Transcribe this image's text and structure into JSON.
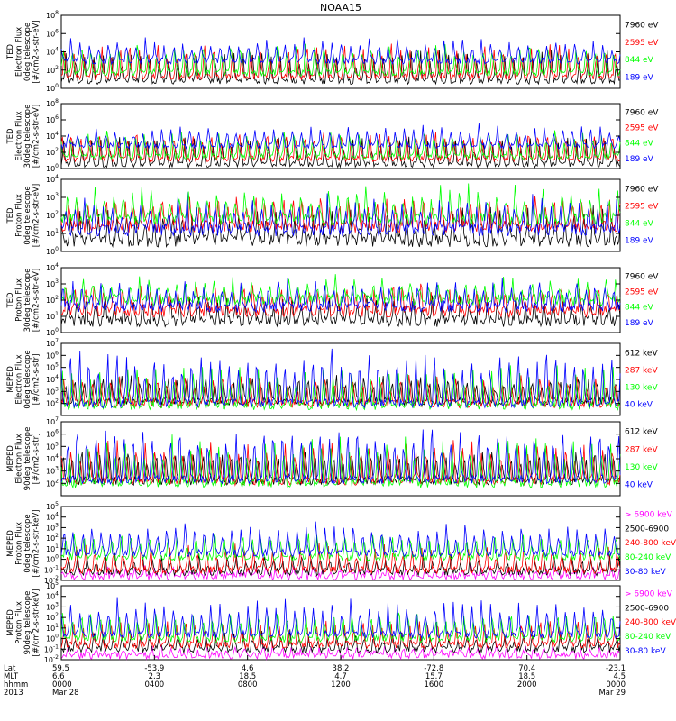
{
  "chart_data": {
    "type": "line",
    "title": "NOAA15",
    "log_scale_y": true,
    "legend_placement": "right",
    "x_time_start": "2013 Mar 28 0000",
    "x_time_end": "2013 Mar 29 0000",
    "panels": [
      {
        "ylabel": [
          "TED",
          "Electron Flux",
          "0deg telescope",
          "[#/cm2-s-str-eV]"
        ],
        "ylim_exp": [
          0,
          8
        ],
        "ytick_exps": [
          0,
          2,
          4,
          6,
          8
        ],
        "series": [
          {
            "name": "7960 eV",
            "color": "#000000",
            "base": 0.8,
            "amp": 3.0
          },
          {
            "name": "2595 eV",
            "color": "#ff0000",
            "base": 1.3,
            "amp": 3.3
          },
          {
            "name": "844 eV",
            "color": "#00ff00",
            "base": 1.7,
            "amp": 3.0
          },
          {
            "name": "189 eV",
            "color": "#0000ff",
            "base": 3.0,
            "amp": 2.2
          }
        ]
      },
      {
        "ylabel": [
          "TED",
          "Electron Flux",
          "30deg telescope",
          "[#/cm2-s-str-eV]"
        ],
        "ylim_exp": [
          0,
          8
        ],
        "ytick_exps": [
          0,
          2,
          4,
          6,
          8
        ],
        "series": [
          {
            "name": "7960 eV",
            "color": "#000000",
            "base": 0.5,
            "amp": 3.0
          },
          {
            "name": "2595 eV",
            "color": "#ff0000",
            "base": 1.2,
            "amp": 3.3
          },
          {
            "name": "844 eV",
            "color": "#00ff00",
            "base": 1.5,
            "amp": 3.0
          },
          {
            "name": "189 eV",
            "color": "#0000ff",
            "base": 2.8,
            "amp": 2.2
          }
        ]
      },
      {
        "ylabel": [
          "TED",
          "Proton Flux",
          "0deg telescope",
          "[#/cm2-s-str-eV]"
        ],
        "ylim_exp": [
          0,
          4
        ],
        "ytick_exps": [
          0,
          1,
          2,
          3,
          4
        ],
        "series": [
          {
            "name": "7960 eV",
            "color": "#000000",
            "base": 0.6,
            "amp": 1.6
          },
          {
            "name": "2595 eV",
            "color": "#ff0000",
            "base": 1.4,
            "amp": 1.6
          },
          {
            "name": "844 eV",
            "color": "#00ff00",
            "base": 1.8,
            "amp": 1.6
          },
          {
            "name": "189 eV",
            "color": "#0000ff",
            "base": 1.2,
            "amp": 1.6
          }
        ]
      },
      {
        "ylabel": [
          "TED",
          "Proton Flux",
          "30deg telescope",
          "[#/cm2-s-str-eV]"
        ],
        "ylim_exp": [
          0,
          4
        ],
        "ytick_exps": [
          0,
          1,
          2,
          3,
          4
        ],
        "series": [
          {
            "name": "7960 eV",
            "color": "#000000",
            "base": 0.7,
            "amp": 1.4
          },
          {
            "name": "2595 eV",
            "color": "#ff0000",
            "base": 1.3,
            "amp": 1.5
          },
          {
            "name": "844 eV",
            "color": "#00ff00",
            "base": 2.0,
            "amp": 1.2
          },
          {
            "name": "189 eV",
            "color": "#0000ff",
            "base": 1.6,
            "amp": 1.4
          }
        ]
      },
      {
        "ylabel": [
          "MEPED",
          "Electron Flux",
          "0deg telescope",
          "[#/cm2-s-str]"
        ],
        "ylim_exp": [
          1,
          7
        ],
        "ytick_exps": [
          2,
          3,
          4,
          5,
          6,
          7
        ],
        "series": [
          {
            "name": "612 keV",
            "color": "#000000",
            "base": 2.2,
            "amp": 2.0
          },
          {
            "name": "287 keV",
            "color": "#ff0000",
            "base": 2.0,
            "amp": 2.2
          },
          {
            "name": "130 keV",
            "color": "#00ff00",
            "base": 1.8,
            "amp": 3.0
          },
          {
            "name": "40 keV",
            "color": "#0000ff",
            "base": 2.0,
            "amp": 4.2
          }
        ]
      },
      {
        "ylabel": [
          "MEPED",
          "Electron Flux",
          "90deg telescope",
          "[#/cm2-s-str]"
        ],
        "ylim_exp": [
          1,
          7
        ],
        "ytick_exps": [
          2,
          3,
          4,
          5,
          6,
          7
        ],
        "series": [
          {
            "name": "612 keV",
            "color": "#000000",
            "base": 2.2,
            "amp": 2.4
          },
          {
            "name": "287 keV",
            "color": "#ff0000",
            "base": 2.2,
            "amp": 3.0
          },
          {
            "name": "130 keV",
            "color": "#00ff00",
            "base": 2.0,
            "amp": 3.4
          },
          {
            "name": "40 keV",
            "color": "#0000ff",
            "base": 2.3,
            "amp": 4.0
          }
        ]
      },
      {
        "ylabel": [
          "MEPED",
          "Proton Flux",
          "0deg telescope",
          "[#/cm2-s-str-keV]"
        ],
        "ylim_exp": [
          -2,
          5
        ],
        "ytick_exps": [
          -2,
          -1,
          0,
          1,
          2,
          3,
          4,
          5
        ],
        "series": [
          {
            "name": "> 6900 keV",
            "color": "#ff00ff",
            "base": -1.6,
            "amp": 0.8
          },
          {
            "name": "2500-6900",
            "color": "#000000",
            "base": -1.2,
            "amp": 1.4
          },
          {
            "name": "240-800 keV",
            "color": "#ff0000",
            "base": -1.0,
            "amp": 2.2
          },
          {
            "name": "80-240 keV",
            "color": "#00ff00",
            "base": 0.2,
            "amp": 2.2
          },
          {
            "name": "30-80 keV",
            "color": "#0000ff",
            "base": 0.6,
            "amp": 2.6
          }
        ]
      },
      {
        "ylabel": [
          "MEPED",
          "Proton Flux",
          "90deg telescope",
          "[#/cm2-s-str-keV]"
        ],
        "ylim_exp": [
          -2,
          5
        ],
        "ytick_exps": [
          -2,
          -1,
          0,
          1,
          2,
          3,
          4,
          5
        ],
        "series": [
          {
            "name": "> 6900 keV",
            "color": "#ff00ff",
            "base": -1.6,
            "amp": 0.8
          },
          {
            "name": "2500-6900",
            "color": "#000000",
            "base": -1.0,
            "amp": 1.4
          },
          {
            "name": "240-800 keV",
            "color": "#ff0000",
            "base": -0.6,
            "amp": 2.2
          },
          {
            "name": "80-240 keV",
            "color": "#00ff00",
            "base": 0.0,
            "amp": 2.4
          },
          {
            "name": "30-80 keV",
            "color": "#0000ff",
            "base": 0.4,
            "amp": 3.0
          }
        ]
      }
    ],
    "x_info": {
      "row_labels": [
        "Lat",
        "MLT",
        "hhmm",
        "2013"
      ],
      "columns": [
        {
          "lat": "59.5",
          "mlt": "6.6",
          "hhmm": "0000",
          "date": "Mar 28"
        },
        {
          "lat": "-53.9",
          "mlt": "2.3",
          "hhmm": "0400",
          "date": ""
        },
        {
          "lat": "4.6",
          "mlt": "18.5",
          "hhmm": "0800",
          "date": ""
        },
        {
          "lat": "38.2",
          "mlt": "4.7",
          "hhmm": "1200",
          "date": ""
        },
        {
          "lat": "-72.8",
          "mlt": "15.7",
          "hhmm": "1600",
          "date": ""
        },
        {
          "lat": "70.4",
          "mlt": "18.5",
          "hhmm": "2000",
          "date": ""
        },
        {
          "lat": "-23.1",
          "mlt": "4.5",
          "hhmm": "0000",
          "date": "Mar 29"
        }
      ]
    }
  }
}
